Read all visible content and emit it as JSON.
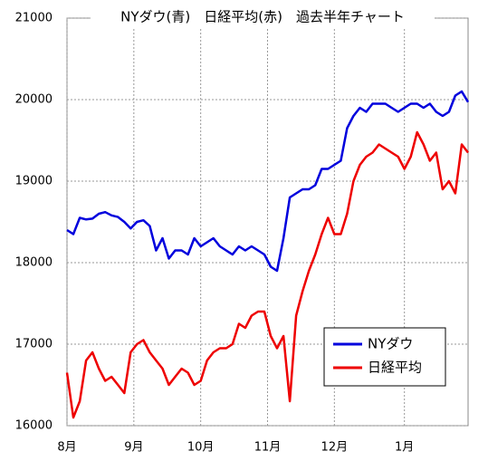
{
  "chart_data": {
    "type": "line",
    "title": "NYダウ(青)　日経平均(赤)　過去半年チャート",
    "xlim": [
      0,
      63
    ],
    "xticks": [
      {
        "value": 0,
        "label": "8月"
      },
      {
        "value": 10.5,
        "label": "9月"
      },
      {
        "value": 21,
        "label": "10月"
      },
      {
        "value": 31.5,
        "label": "11月"
      },
      {
        "value": 42,
        "label": "12月"
      },
      {
        "value": 53,
        "label": "1月"
      }
    ],
    "ylim": [
      16000,
      21000
    ],
    "yticks": [
      16000,
      17000,
      18000,
      19000,
      20000,
      21000
    ],
    "grid": true,
    "legend": "lower right",
    "series": [
      {
        "name": "NYダウ",
        "color": "#0000dd",
        "values": [
          18400,
          18350,
          18550,
          18530,
          18540,
          18600,
          18620,
          18580,
          18560,
          18500,
          18420,
          18500,
          18520,
          18450,
          18150,
          18300,
          18050,
          18150,
          18150,
          18100,
          18300,
          18200,
          18250,
          18300,
          18200,
          18150,
          18100,
          18200,
          18150,
          18200,
          18150,
          18100,
          17950,
          17900,
          18300,
          18800,
          18850,
          18900,
          18900,
          18950,
          19150,
          19150,
          19200,
          19250,
          19650,
          19800,
          19900,
          19850,
          19950,
          19950,
          19950,
          19900,
          19850,
          19900,
          19950,
          19950,
          19900,
          19950,
          19850,
          19800,
          19850,
          20050,
          20100,
          19970
        ]
      },
      {
        "name": "日経平均",
        "color": "#ee0000",
        "values": [
          16650,
          16100,
          16300,
          16800,
          16900,
          16700,
          16550,
          16600,
          16500,
          16400,
          16900,
          17000,
          17050,
          16900,
          16800,
          16700,
          16500,
          16600,
          16700,
          16650,
          16500,
          16550,
          16800,
          16900,
          16950,
          16950,
          17000,
          17250,
          17200,
          17350,
          17400,
          17400,
          17100,
          16950,
          17100,
          16300,
          17350,
          17650,
          17900,
          18100,
          18350,
          18550,
          18350,
          18350,
          18600,
          19000,
          19200,
          19300,
          19350,
          19450,
          19400,
          19350,
          19300,
          19150,
          19300,
          19600,
          19450,
          19250,
          19350,
          18900,
          19000,
          18850,
          19450,
          19350
        ]
      }
    ]
  }
}
